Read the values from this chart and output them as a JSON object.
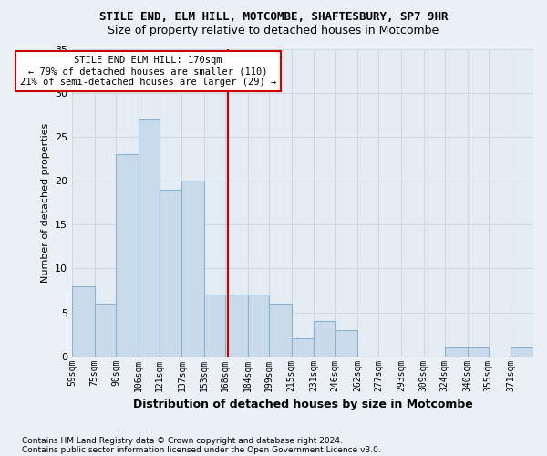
{
  "title1": "STILE END, ELM HILL, MOTCOMBE, SHAFTESBURY, SP7 9HR",
  "title2": "Size of property relative to detached houses in Motcombe",
  "xlabel": "Distribution of detached houses by size in Motcombe",
  "ylabel": "Number of detached properties",
  "bin_labels": [
    "59sqm",
    "75sqm",
    "90sqm",
    "106sqm",
    "121sqm",
    "137sqm",
    "153sqm",
    "168sqm",
    "184sqm",
    "199sqm",
    "215sqm",
    "231sqm",
    "246sqm",
    "262sqm",
    "277sqm",
    "293sqm",
    "309sqm",
    "324sqm",
    "340sqm",
    "355sqm",
    "371sqm"
  ],
  "bin_edges": [
    59,
    75,
    90,
    106,
    121,
    137,
    153,
    168,
    184,
    199,
    215,
    231,
    246,
    262,
    277,
    293,
    309,
    324,
    340,
    355,
    371,
    387
  ],
  "values": [
    8,
    6,
    23,
    27,
    19,
    20,
    7,
    7,
    7,
    6,
    2,
    4,
    3,
    0,
    0,
    0,
    0,
    1,
    1,
    0,
    1
  ],
  "bar_color": "#c9daea",
  "bar_edge_color": "#8ab4d0",
  "grid_color": "#d0d8e0",
  "vline_x": 170,
  "vline_color": "#cc0000",
  "annotation_text": "STILE END ELM HILL: 170sqm\n← 79% of detached houses are smaller (110)\n21% of semi-detached houses are larger (29) →",
  "annotation_box_color": "#ffffff",
  "annotation_box_edge": "#cc0000",
  "ylim": [
    0,
    35
  ],
  "yticks": [
    0,
    5,
    10,
    15,
    20,
    25,
    30,
    35
  ],
  "footer1": "Contains HM Land Registry data © Crown copyright and database right 2024.",
  "footer2": "Contains public sector information licensed under the Open Government Licence v3.0.",
  "bg_color": "#eaf0f6",
  "plot_bg_color": "#e4ecf4"
}
